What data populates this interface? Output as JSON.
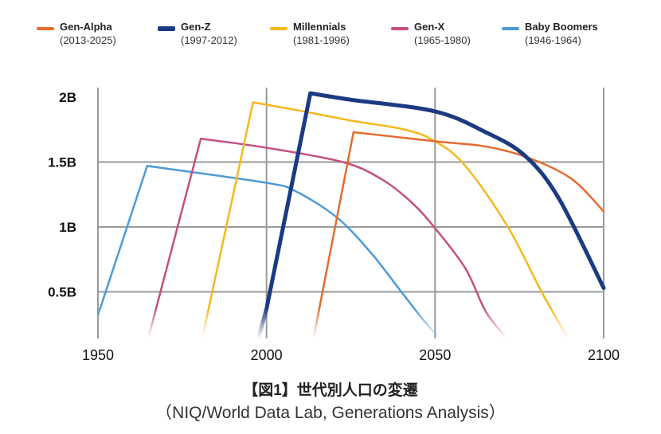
{
  "chart_data": {
    "type": "line",
    "title": "",
    "xlabel": "",
    "ylabel": "",
    "xlim": [
      1950,
      2100
    ],
    "ylim_visible": [
      0.15,
      2.05
    ],
    "x_ticks": [
      "1950",
      "2000",
      "2050",
      "2100"
    ],
    "x_tick_values": [
      1950,
      2000,
      2050,
      2100
    ],
    "y_ticks": [
      "0.5B",
      "1B",
      "1.5B",
      "2B"
    ],
    "y_tick_values": [
      0.5,
      1,
      1.5,
      2
    ],
    "grid": true,
    "legend_position": "top",
    "series": [
      {
        "name": "Gen-Alpha",
        "sub": "(2013-2025)",
        "color": "#e46c2e",
        "width": 2.5,
        "points": [
          [
            2014,
            0.15
          ],
          [
            2025.8,
            1.73
          ],
          [
            2050,
            1.66
          ],
          [
            2065,
            1.62
          ],
          [
            2078,
            1.53
          ],
          [
            2090.5,
            1.37
          ],
          [
            2100,
            1.12
          ]
        ]
      },
      {
        "name": "Gen-Z",
        "sub": "(1997-2012)",
        "color": "#1c3a82",
        "width": 5,
        "points": [
          [
            1997.7,
            0.15
          ],
          [
            2000,
            0.37
          ],
          [
            2013,
            2.03
          ],
          [
            2025,
            1.98
          ],
          [
            2050,
            1.89
          ],
          [
            2065,
            1.73
          ],
          [
            2076.6,
            1.55
          ],
          [
            2086.7,
            1.22
          ],
          [
            2100,
            0.53
          ]
        ]
      },
      {
        "name": "Millennials",
        "sub": "(1981-1996)",
        "color": "#f5b81c",
        "width": 2.5,
        "points": [
          [
            1981,
            0.15
          ],
          [
            1996,
            1.96
          ],
          [
            2009,
            1.9
          ],
          [
            2025,
            1.82
          ],
          [
            2041,
            1.75
          ],
          [
            2050,
            1.66
          ],
          [
            2059,
            1.47
          ],
          [
            2071.6,
            1.0
          ],
          [
            2081.6,
            0.5
          ],
          [
            2089,
            0.16
          ]
        ]
      },
      {
        "name": "Gen-X",
        "sub": "(1965-1980)",
        "color": "#c44f80",
        "width": 2.5,
        "points": [
          [
            1965,
            0.15
          ],
          [
            1980.5,
            1.68
          ],
          [
            2000,
            1.61
          ],
          [
            2022.6,
            1.5
          ],
          [
            2034,
            1.37
          ],
          [
            2043,
            1.19
          ],
          [
            2050,
            0.99
          ],
          [
            2059,
            0.68
          ],
          [
            2065,
            0.35
          ],
          [
            2071,
            0.15
          ]
        ]
      },
      {
        "name": "Baby Boomers",
        "sub": "(1946-1964)",
        "color": "#4c9ad8",
        "width": 2.5,
        "points": [
          [
            1950,
            0.32
          ],
          [
            1964.6,
            1.47
          ],
          [
            2000,
            1.34
          ],
          [
            2009,
            1.27
          ],
          [
            2021,
            1.07
          ],
          [
            2031,
            0.8
          ],
          [
            2040,
            0.5
          ],
          [
            2046,
            0.3
          ],
          [
            2051,
            0.15
          ]
        ]
      }
    ]
  },
  "caption": {
    "title": "【図1】世代別人口の変遷",
    "source": "（NIQ/World Data Lab, Generations Analysis）"
  }
}
